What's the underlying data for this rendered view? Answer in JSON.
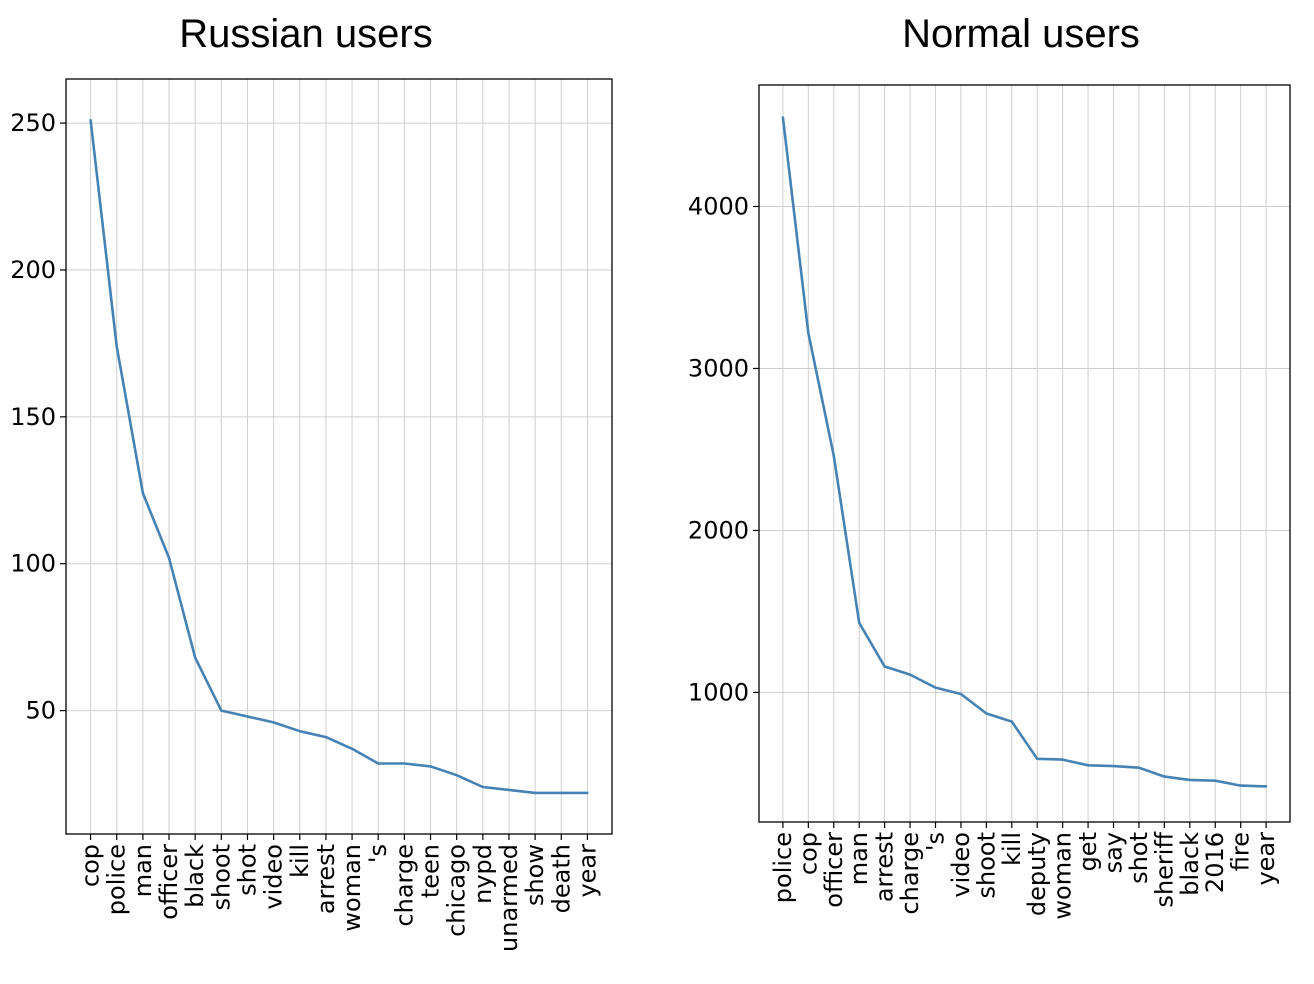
{
  "chart_data": [
    {
      "type": "line",
      "title": "Russian users",
      "xlabel": "",
      "ylabel": "",
      "categories": [
        "cop",
        "police",
        "man",
        "officer",
        "black",
        "shoot",
        "shot",
        "video",
        "kill",
        "arrest",
        "woman",
        "'s",
        "charge",
        "teen",
        "chicago",
        "nypd",
        "unarmed",
        "show",
        "death",
        "year"
      ],
      "values": [
        251,
        174,
        124,
        102,
        68,
        50,
        48,
        46,
        43,
        41,
        37,
        32,
        32,
        31,
        28,
        24,
        23,
        22,
        22,
        22
      ],
      "yticks": [
        50,
        100,
        150,
        200,
        250
      ],
      "ylim": [
        8,
        265
      ],
      "grid": true,
      "color": "#4682b4"
    },
    {
      "type": "line",
      "title": "Normal users",
      "xlabel": "",
      "ylabel": "",
      "categories": [
        "police",
        "cop",
        "officer",
        "man",
        "arrest",
        "charge",
        "'s",
        "video",
        "shoot",
        "kill",
        "deputy",
        "woman",
        "get",
        "say",
        "shot",
        "sheriff",
        "black",
        "2016",
        "fire",
        "year"
      ],
      "values": [
        4550,
        3220,
        2460,
        1430,
        1160,
        1110,
        1030,
        990,
        870,
        820,
        590,
        585,
        550,
        545,
        535,
        480,
        460,
        455,
        425,
        420
      ],
      "yticks": [
        1000,
        2000,
        3000,
        4000
      ],
      "ylim": [
        200,
        4750
      ],
      "grid": true,
      "color": "#4682b4"
    }
  ]
}
